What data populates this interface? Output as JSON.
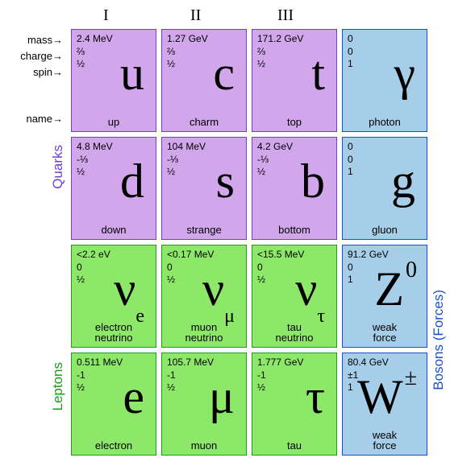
{
  "columns": [
    "I",
    "II",
    "III"
  ],
  "row_labels": [
    "mass→",
    "charge→",
    "spin→",
    "name→"
  ],
  "side_labels": {
    "quarks": {
      "text": "Quarks",
      "color": "#6e3fd6"
    },
    "leptons": {
      "text": "Leptons",
      "color": "#1f9a1f"
    },
    "bosons": {
      "text": "Bosons (Forces)",
      "color": "#1a4fd0"
    }
  },
  "colors": {
    "quark_bg": "#d1a6ea",
    "quark_border": "#6e3fd6",
    "lepton_bg": "#8de86a",
    "lepton_border": "#1f9a1f",
    "boson_bg": "#a6cee9",
    "boson_border": "#1a4fd0"
  },
  "cells": [
    {
      "kind": "quark",
      "mass": "2.4 MeV",
      "charge": "⅔",
      "spin": "½",
      "symbol": "u",
      "name": "up"
    },
    {
      "kind": "quark",
      "mass": "1.27 GeV",
      "charge": "⅔",
      "spin": "½",
      "symbol": "c",
      "name": "charm"
    },
    {
      "kind": "quark",
      "mass": "171.2 GeV",
      "charge": "⅔",
      "spin": "½",
      "symbol": "t",
      "name": "top"
    },
    {
      "kind": "boson",
      "mass": "0",
      "charge": "0",
      "spin": "1",
      "symbol": "γ",
      "name": "photon"
    },
    {
      "kind": "quark",
      "mass": "4.8 MeV",
      "charge": "-⅓",
      "spin": "½",
      "symbol": "d",
      "name": "down"
    },
    {
      "kind": "quark",
      "mass": "104 MeV",
      "charge": "-⅓",
      "spin": "½",
      "symbol": "s",
      "name": "strange"
    },
    {
      "kind": "quark",
      "mass": "4.2 GeV",
      "charge": "-⅓",
      "spin": "½",
      "symbol": "b",
      "name": "bottom"
    },
    {
      "kind": "boson",
      "mass": "0",
      "charge": "0",
      "spin": "1",
      "symbol": "g",
      "name": "gluon"
    },
    {
      "kind": "lepton",
      "mass": "<2.2 eV",
      "charge": "0",
      "spin": "½",
      "symbol": "ν",
      "sub": "e",
      "name": "electron\nneutrino"
    },
    {
      "kind": "lepton",
      "mass": "<0.17 MeV",
      "charge": "0",
      "spin": "½",
      "symbol": "ν",
      "sub": "μ",
      "name": "muon\nneutrino"
    },
    {
      "kind": "lepton",
      "mass": "<15.5 MeV",
      "charge": "0",
      "spin": "½",
      "symbol": "ν",
      "sub": "τ",
      "name": "tau\nneutrino"
    },
    {
      "kind": "boson",
      "mass": "91.2 GeV",
      "charge": "0",
      "spin": "1",
      "symbol": "Z",
      "sup": "0",
      "name": "weak\nforce"
    },
    {
      "kind": "lepton",
      "mass": "0.511 MeV",
      "charge": "-1",
      "spin": "½",
      "symbol": "e",
      "name": "electron"
    },
    {
      "kind": "lepton",
      "mass": "105.7 MeV",
      "charge": "-1",
      "spin": "½",
      "symbol": "μ",
      "name": "muon"
    },
    {
      "kind": "lepton",
      "mass": "1.777 GeV",
      "charge": "-1",
      "spin": "½",
      "symbol": "τ",
      "name": "tau"
    },
    {
      "kind": "boson",
      "mass": "80.4 GeV",
      "charge": "±1",
      "spin": "1",
      "symbol": "W",
      "sup": "±",
      "name": "weak\nforce"
    }
  ]
}
